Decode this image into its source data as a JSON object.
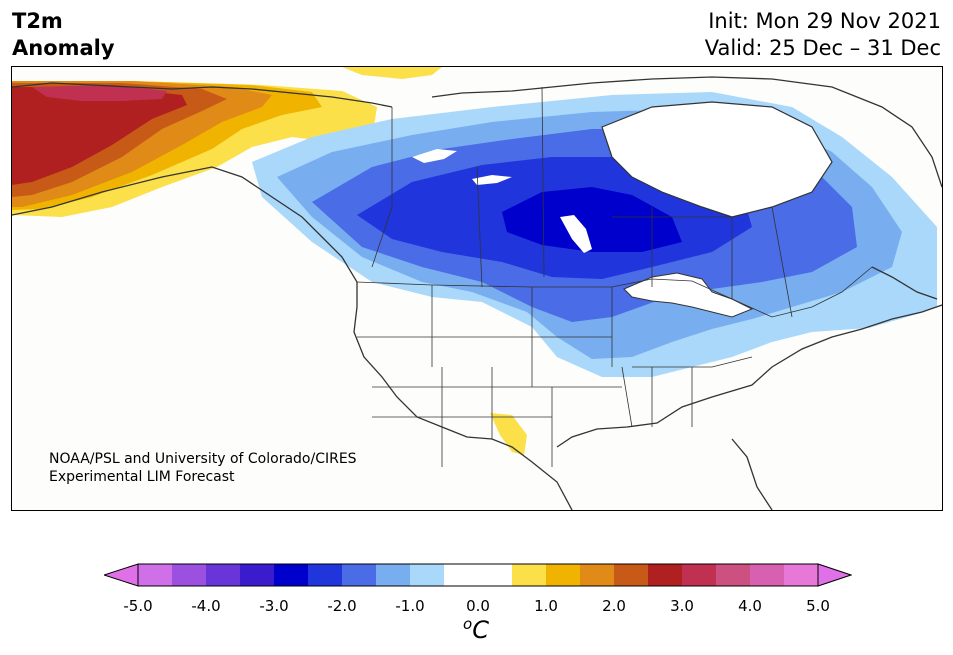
{
  "header": {
    "title_line1": "T2m",
    "title_line2": "Anomaly",
    "init": "Init: Mon 29 Nov 2021",
    "valid": "Valid: 25 Dec – 31 Dec"
  },
  "credit": {
    "line1": "NOAA/PSL and University of Colorado/CIRES",
    "line2": "Experimental LIM Forecast"
  },
  "colorbar": {
    "unit_base": "C",
    "unit_sup": "o",
    "ticks": [
      "-5.0",
      "-4.0",
      "-3.0",
      "-2.0",
      "-1.0",
      "0.0",
      "1.0",
      "2.0",
      "3.0",
      "4.0",
      "5.0"
    ],
    "colors": [
      "#d070e8",
      "#9b50e0",
      "#6a35d8",
      "#3a1ccc",
      "#0000cc",
      "#2035dc",
      "#4a6ce6",
      "#78aef0",
      "#aad8fa",
      "#ffffff",
      "#ffffff",
      "#fbe04a",
      "#f0b400",
      "#e08a18",
      "#c85a18",
      "#b02020",
      "#c03050",
      "#cc5080",
      "#d860b0",
      "#e878d8"
    ],
    "under_color": "#e070e8",
    "over_color": "#e070e8"
  },
  "map": {
    "variable": "2m temperature anomaly",
    "region": "North America",
    "colors": {
      "cold1": "#aad8fa",
      "cold2": "#78aef0",
      "cold3": "#4a6ce6",
      "cold4": "#2035dc",
      "cold5": "#0000cc",
      "warm1": "#fbe04a",
      "warm2": "#f0b400",
      "warm3": "#e08a18",
      "warm4": "#c85a18",
      "warm5": "#b02020",
      "warm6": "#c03050"
    }
  }
}
